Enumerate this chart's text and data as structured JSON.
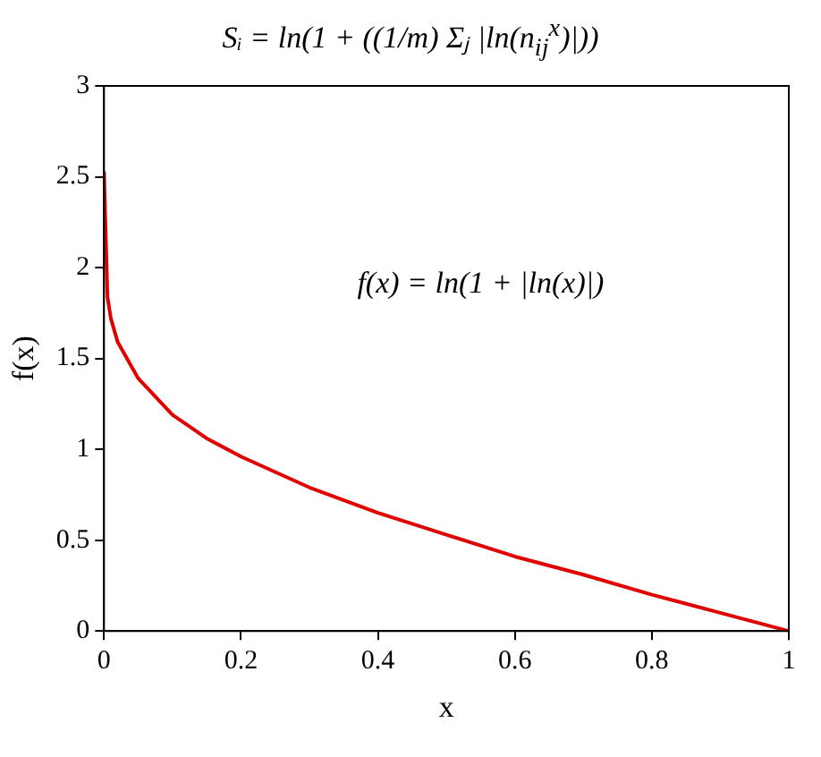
{
  "chart_data": {
    "type": "line",
    "title": "Sᵢ = ln(1 + ((1/m) Σⱼ |ln(n$_{ij}$$^{x}$)|))",
    "xlabel": "x",
    "ylabel": "f(x)",
    "annotations": [
      "f(x) = ln(1 + |ln(x)|)"
    ],
    "x": [
      1e-05,
      0.005,
      0.01,
      0.02,
      0.05,
      0.1,
      0.15,
      0.2,
      0.3,
      0.4,
      0.5,
      0.6,
      0.7,
      0.8,
      0.9,
      1
    ],
    "series": [
      {
        "color": "#e00000",
        "values": [
          2.53,
          1.84,
          1.72,
          1.59,
          1.39,
          1.19,
          1.06,
          0.96,
          0.79,
          0.65,
          0.53,
          0.41,
          0.31,
          0.2,
          0.1,
          0
        ]
      }
    ],
    "xlim": [
      0,
      1
    ],
    "xticks": [
      0,
      0.2,
      0.4,
      0.6,
      0.8,
      1
    ],
    "ylim": [
      0,
      3
    ],
    "yticks": [
      0,
      0.5,
      1,
      1.5,
      2,
      2.5,
      3
    ],
    "grid": false,
    "legend": false,
    "marker": "none",
    "line_style": "solid"
  }
}
